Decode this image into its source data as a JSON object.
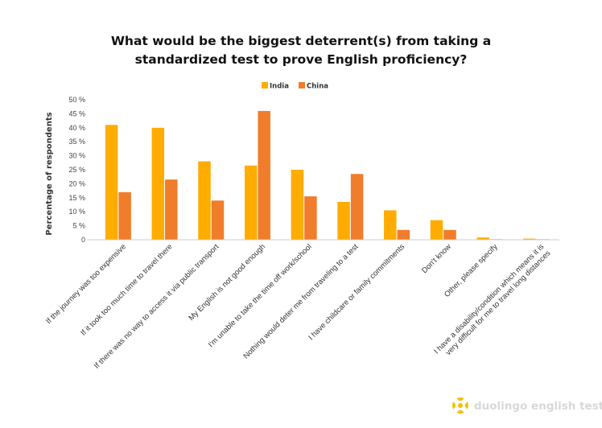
{
  "chart_data": {
    "type": "bar",
    "title_line1": "What would be the biggest deterrent(s) from taking a",
    "title_line2": "standardized test to prove English proficiency?",
    "ylabel": "Percentage of respondents",
    "ylim": [
      0,
      50
    ],
    "yticks": [
      "0",
      "5 %",
      "10 %",
      "15 %",
      "20 %",
      "25 %",
      "30 %",
      "35 %",
      "40 %",
      "45 %",
      "50 %"
    ],
    "legend_position": "top-center",
    "categories": [
      [
        "If the journey was too expensive"
      ],
      [
        "If it took too much time to travel there"
      ],
      [
        "If there was no way to access it via public transport"
      ],
      [
        "My English is not good enough"
      ],
      [
        "I'm unable to take the time off work/school"
      ],
      [
        "Nothing would deter me from traveling to a test"
      ],
      [
        "I have childcare or family commitments"
      ],
      [
        "Don't know"
      ],
      [
        "Other, please specify"
      ],
      [
        "I have a disability/condition which means it is",
        "very difficult for me to travel long distances"
      ]
    ],
    "series": [
      {
        "name": "India",
        "color": "#FFAC00",
        "values": [
          41,
          40,
          28,
          26.5,
          25,
          13.5,
          10.5,
          7,
          0.8,
          0.4
        ]
      },
      {
        "name": "China",
        "color": "#F07D2B",
        "values": [
          17,
          21.5,
          14,
          46,
          15.5,
          23.5,
          3.5,
          3.5,
          0.2,
          0.2
        ]
      }
    ],
    "grid": false
  },
  "branding": {
    "text": "duolingo english test",
    "color": "#F5C000"
  }
}
